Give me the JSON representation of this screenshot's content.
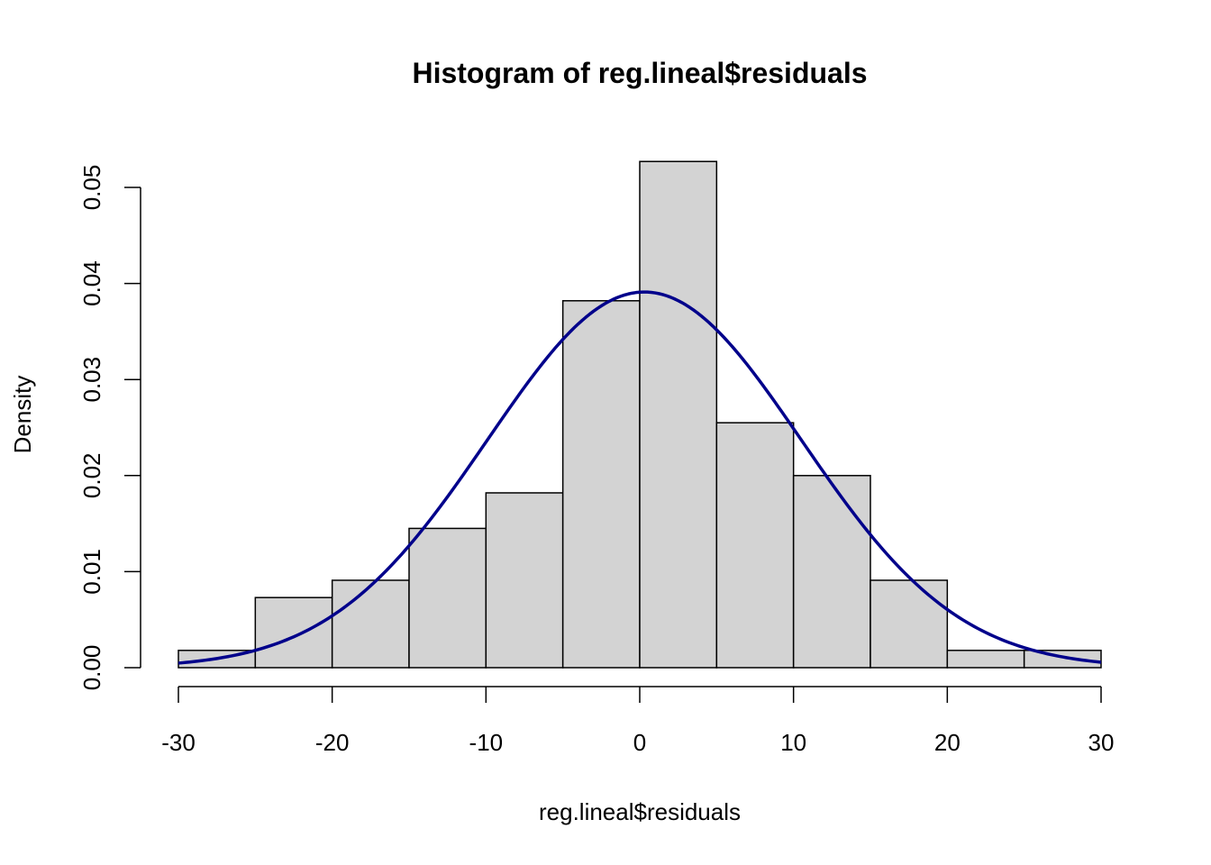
{
  "chart_data": {
    "type": "histogram",
    "title": "Histogram of reg.lineal$residuals",
    "xlabel": "reg.lineal$residuals",
    "ylabel": "Density",
    "bins": [
      {
        "from": -30,
        "to": -25,
        "density": 0.0018
      },
      {
        "from": -25,
        "to": -20,
        "density": 0.0073
      },
      {
        "from": -20,
        "to": -15,
        "density": 0.0091
      },
      {
        "from": -15,
        "to": -10,
        "density": 0.0145
      },
      {
        "from": -10,
        "to": -5,
        "density": 0.0182
      },
      {
        "from": -5,
        "to": 0,
        "density": 0.0382
      },
      {
        "from": 0,
        "to": 5,
        "density": 0.0527
      },
      {
        "from": 5,
        "to": 10,
        "density": 0.0255
      },
      {
        "from": 10,
        "to": 15,
        "density": 0.02
      },
      {
        "from": 15,
        "to": 20,
        "density": 0.0091
      },
      {
        "from": 20,
        "to": 25,
        "density": 0.0018
      },
      {
        "from": 25,
        "to": 30,
        "density": 0.0018
      }
    ],
    "density_curve": {
      "kind": "normal",
      "mean": 0.3,
      "sd": 10.2,
      "color": "#00008B"
    },
    "bar_fill": "#D3D3D3",
    "xlim": [
      -30,
      30
    ],
    "ylim": [
      0,
      0.05
    ],
    "x_ticks": [
      "-30",
      "-20",
      "-10",
      "0",
      "10",
      "20",
      "30"
    ],
    "x_tick_values": [
      -30,
      -20,
      -10,
      0,
      10,
      20,
      30
    ],
    "y_ticks": [
      "0.00",
      "0.01",
      "0.02",
      "0.03",
      "0.04",
      "0.05"
    ],
    "y_tick_values": [
      0,
      0.01,
      0.02,
      0.03,
      0.04,
      0.05
    ],
    "grid": false
  }
}
